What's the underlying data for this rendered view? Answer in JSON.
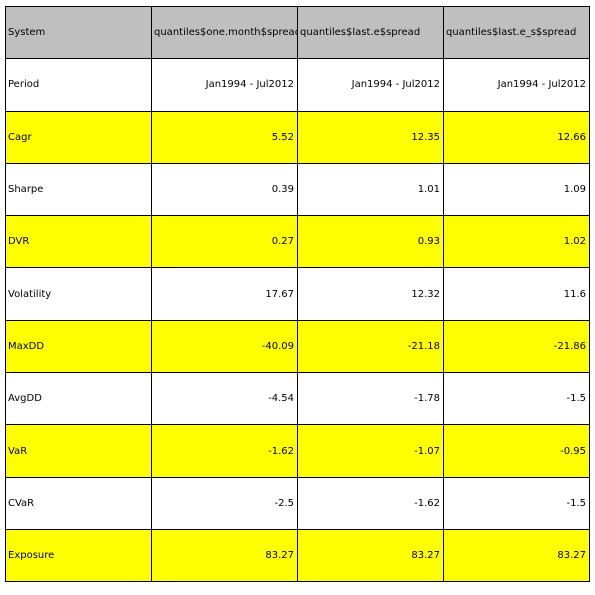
{
  "colors": {
    "header_bg": "#bfbfbf",
    "highlight_bg": "#ffff00",
    "plain_bg": "#ffffff",
    "border": "#000000"
  },
  "table": {
    "columns": [
      "System",
      "quantiles$one.month$spread",
      "quantiles$last.e$spread",
      "quantiles$last.e_s$spread"
    ],
    "rows": [
      {
        "label": "Period",
        "values": [
          "Jan1994 - Jul2012",
          "Jan1994 - Jul2012",
          "Jan1994 - Jul2012"
        ],
        "highlight": false
      },
      {
        "label": "Cagr",
        "values": [
          "5.52",
          "12.35",
          "12.66"
        ],
        "highlight": true
      },
      {
        "label": "Sharpe",
        "values": [
          "0.39",
          "1.01",
          "1.09"
        ],
        "highlight": false
      },
      {
        "label": "DVR",
        "values": [
          "0.27",
          "0.93",
          "1.02"
        ],
        "highlight": true
      },
      {
        "label": "Volatility",
        "values": [
          "17.67",
          "12.32",
          "11.6"
        ],
        "highlight": false
      },
      {
        "label": "MaxDD",
        "values": [
          "-40.09",
          "-21.18",
          "-21.86"
        ],
        "highlight": true
      },
      {
        "label": "AvgDD",
        "values": [
          "-4.54",
          "-1.78",
          "-1.5"
        ],
        "highlight": false
      },
      {
        "label": "VaR",
        "values": [
          "-1.62",
          "-1.07",
          "-0.95"
        ],
        "highlight": true
      },
      {
        "label": "CVaR",
        "values": [
          "-2.5",
          "-1.62",
          "-1.5"
        ],
        "highlight": false
      },
      {
        "label": "Exposure",
        "values": [
          "83.27",
          "83.27",
          "83.27"
        ],
        "highlight": true
      }
    ]
  }
}
